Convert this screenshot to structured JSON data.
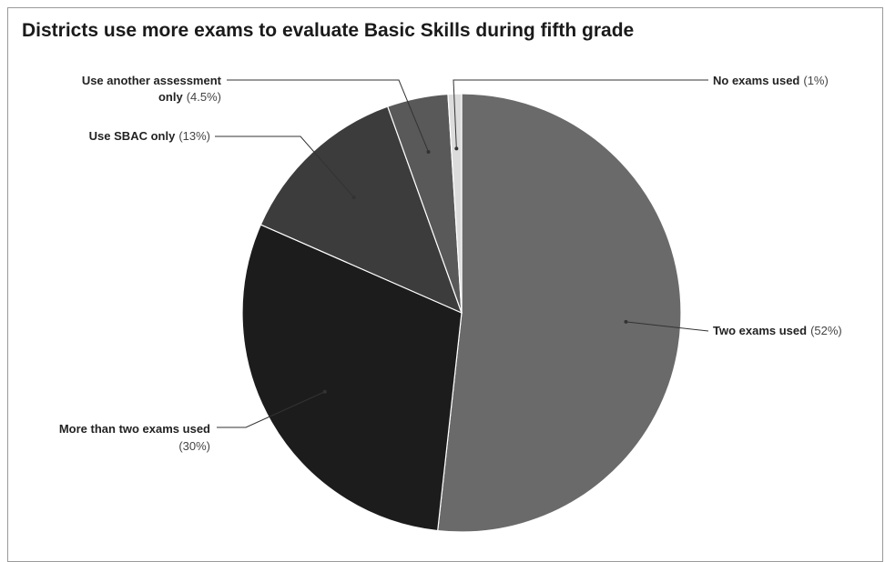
{
  "chart_data": {
    "type": "pie",
    "title": "Districts use more exams to evaluate Basic Skills during fifth grade",
    "slices": [
      {
        "label": "Two exams used",
        "pct_label": "(52%)",
        "value": 52,
        "color": "#6a6a6a"
      },
      {
        "label": "More than two exams used",
        "pct_label": "(30%)",
        "value": 30,
        "color": "#1c1c1c"
      },
      {
        "label": "Use SBAC only",
        "pct_label": "(13%)",
        "value": 13,
        "color": "#3c3c3c"
      },
      {
        "label": "Use another assessment only",
        "label_line1": "Use another assessment",
        "label_line2": "only",
        "pct_label": "(4.5%)",
        "value": 4.5,
        "color": "#595959"
      },
      {
        "label": "No exams used",
        "pct_label": "(1%)",
        "value": 1,
        "color": "#dcdcdc"
      }
    ]
  }
}
